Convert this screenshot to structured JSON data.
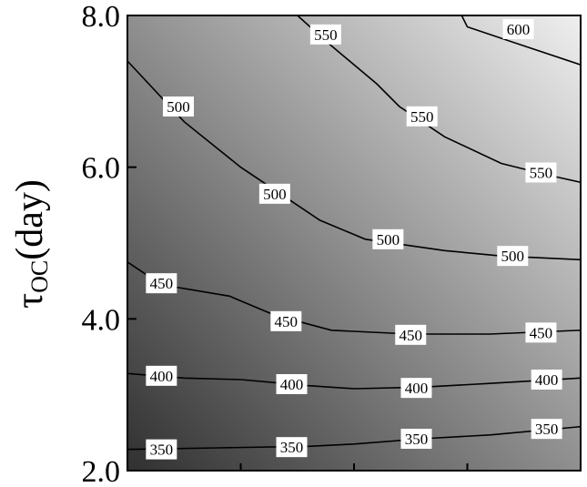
{
  "chart_data": {
    "type": "contour",
    "title": "",
    "ylabel": {
      "symbol": "τ",
      "subscript": "OC",
      "unit": "(day)"
    },
    "xlabel": "",
    "ylim": [
      2.0,
      8.0
    ],
    "yticks": [
      "2.0",
      "4.0",
      "6.0",
      "8.0"
    ],
    "xlim": [
      0,
      4
    ],
    "xticks": [
      0,
      1,
      2,
      3,
      4
    ],
    "xtick_labels": [],
    "grid": false,
    "legend": "none",
    "colors": {
      "dark": "#303030",
      "light": "#efefef",
      "contour_line": "#000000",
      "label_bg": "#ffffff"
    },
    "contours": [
      {
        "level": 350,
        "points": [
          [
            0,
            2.28
          ],
          [
            0.8,
            2.3
          ],
          [
            1.6,
            2.32
          ],
          [
            2.0,
            2.35
          ],
          [
            2.6,
            2.42
          ],
          [
            3.2,
            2.47
          ],
          [
            4.0,
            2.58
          ]
        ]
      },
      {
        "level": 400,
        "points": [
          [
            0,
            3.28
          ],
          [
            0.5,
            3.22
          ],
          [
            1.0,
            3.2
          ],
          [
            1.6,
            3.12
          ],
          [
            2.0,
            3.08
          ],
          [
            2.6,
            3.1
          ],
          [
            3.2,
            3.15
          ],
          [
            4.0,
            3.22
          ]
        ]
      },
      {
        "level": 450,
        "points": [
          [
            0,
            4.75
          ],
          [
            0.3,
            4.45
          ],
          [
            0.9,
            4.3
          ],
          [
            1.3,
            4.05
          ],
          [
            1.8,
            3.85
          ],
          [
            2.5,
            3.8
          ],
          [
            3.2,
            3.8
          ],
          [
            4.0,
            3.85
          ]
        ]
      },
      {
        "level": 500,
        "points": [
          [
            0,
            7.4
          ],
          [
            0.5,
            6.6
          ],
          [
            1.0,
            6.0
          ],
          [
            1.7,
            5.3
          ],
          [
            2.1,
            5.05
          ],
          [
            2.8,
            4.9
          ],
          [
            3.3,
            4.83
          ],
          [
            4.0,
            4.78
          ]
        ]
      },
      {
        "level": 550,
        "points": [
          [
            1.5,
            8.0
          ],
          [
            1.8,
            7.6
          ],
          [
            2.2,
            7.1
          ],
          [
            2.4,
            6.8
          ],
          [
            2.8,
            6.4
          ],
          [
            3.3,
            6.05
          ],
          [
            3.7,
            5.9
          ],
          [
            4.0,
            5.8
          ]
        ]
      },
      {
        "level": 600,
        "points": [
          [
            2.95,
            8.0
          ],
          [
            3.0,
            7.85
          ],
          [
            3.4,
            7.65
          ],
          [
            4.0,
            7.35
          ]
        ]
      }
    ],
    "contour_labels": [
      {
        "text": "350",
        "x": 0.3,
        "y": 2.28
      },
      {
        "text": "350",
        "x": 1.45,
        "y": 2.31
      },
      {
        "text": "350",
        "x": 2.55,
        "y": 2.42
      },
      {
        "text": "350",
        "x": 3.7,
        "y": 2.55
      },
      {
        "text": "400",
        "x": 0.3,
        "y": 3.25
      },
      {
        "text": "400",
        "x": 1.45,
        "y": 3.14
      },
      {
        "text": "400",
        "x": 2.55,
        "y": 3.09
      },
      {
        "text": "400",
        "x": 3.7,
        "y": 3.2
      },
      {
        "text": "450",
        "x": 0.3,
        "y": 4.47
      },
      {
        "text": "450",
        "x": 1.4,
        "y": 3.97
      },
      {
        "text": "450",
        "x": 2.5,
        "y": 3.79
      },
      {
        "text": "450",
        "x": 3.65,
        "y": 3.82
      },
      {
        "text": "500",
        "x": 0.45,
        "y": 6.8
      },
      {
        "text": "500",
        "x": 1.3,
        "y": 5.65
      },
      {
        "text": "500",
        "x": 2.3,
        "y": 5.05
      },
      {
        "text": "500",
        "x": 3.4,
        "y": 4.83
      },
      {
        "text": "550",
        "x": 1.75,
        "y": 7.75
      },
      {
        "text": "550",
        "x": 2.6,
        "y": 6.67
      },
      {
        "text": "550",
        "x": 3.65,
        "y": 5.93
      },
      {
        "text": "600",
        "x": 3.45,
        "y": 7.82
      }
    ]
  }
}
